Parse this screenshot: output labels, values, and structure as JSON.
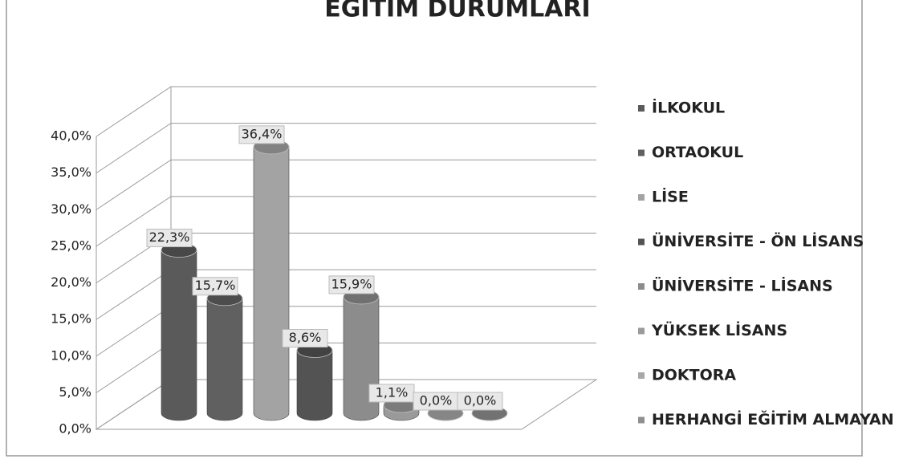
{
  "chart_data": {
    "type": "bar",
    "title": "EĞİTİM DURUMLARI",
    "series": [
      {
        "name": "İLKOKUL",
        "color": "#5a5a5a",
        "values": [
          22.3
        ],
        "value_labels": [
          "22,3%"
        ]
      },
      {
        "name": "ORTAOKUL",
        "color": "#606060",
        "values": [
          15.7
        ],
        "value_labels": [
          "15,7%"
        ]
      },
      {
        "name": "LİSE",
        "color": "#a3a3a3",
        "values": [
          36.4
        ],
        "value_labels": [
          "36,4%"
        ]
      },
      {
        "name": "ÜNİVERSİTE - ÖN LİSANS",
        "color": "#535353",
        "values": [
          8.6
        ],
        "value_labels": [
          "8,6%"
        ]
      },
      {
        "name": "ÜNİVERSİTE - LİSANS",
        "color": "#8c8c8c",
        "values": [
          15.9
        ],
        "value_labels": [
          "15,9%"
        ]
      },
      {
        "name": "YÜKSEK LİSANS",
        "color": "#9a9a9a",
        "values": [
          1.1
        ],
        "value_labels": [
          "1,1%"
        ]
      },
      {
        "name": "DOKTORA",
        "color": "#a8a8a8",
        "values": [
          0.0
        ],
        "value_labels": [
          "0,0%"
        ]
      },
      {
        "name": "HERHANGİ EĞİTİM ALMAYAN",
        "color": "#8f8f8f",
        "values": [
          0.0
        ],
        "value_labels": [
          "0,0%"
        ]
      }
    ],
    "ylim": [
      0,
      40
    ],
    "yticks": [
      {
        "value": 0,
        "label": "0,0%"
      },
      {
        "value": 5,
        "label": "5,0%"
      },
      {
        "value": 10,
        "label": "10,0%"
      },
      {
        "value": 15,
        "label": "15,0%"
      },
      {
        "value": 20,
        "label": "20,0%"
      },
      {
        "value": 25,
        "label": "25,0%"
      },
      {
        "value": 30,
        "label": "30,0%"
      },
      {
        "value": 35,
        "label": "35,0%"
      },
      {
        "value": 40,
        "label": "40,0%"
      }
    ],
    "grid": true,
    "legend": "right"
  }
}
